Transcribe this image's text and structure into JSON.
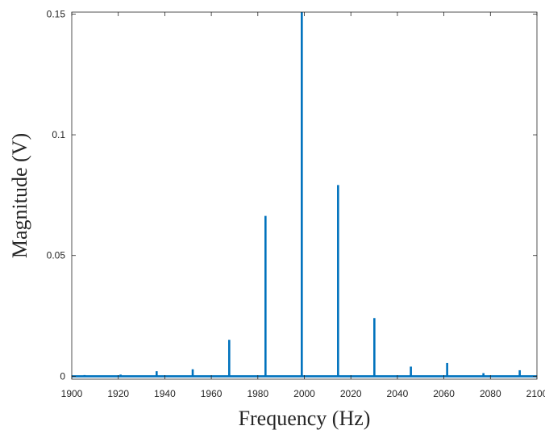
{
  "chart_data": {
    "type": "line",
    "title": "",
    "xlabel": "Frequency (Hz)",
    "ylabel": "Magnitude (V)",
    "xlim": [
      1900,
      2100
    ],
    "ylim": [
      -0.0012,
      0.1508
    ],
    "x_ticks": [
      1900,
      1920,
      1940,
      1960,
      1980,
      2000,
      2020,
      2040,
      2060,
      2080,
      2100
    ],
    "x_tick_labels": [
      "1900",
      "1920",
      "1940",
      "1960",
      "1980",
      "2000",
      "2020",
      "2040",
      "2060",
      "2080",
      "2100"
    ],
    "y_ticks": [
      0,
      0.05,
      0.1,
      0.15
    ],
    "y_tick_labels": [
      "0",
      "0.05",
      "0.1",
      "0.15"
    ],
    "grid": false,
    "legend": "none",
    "series": [
      {
        "color": "#0072BD",
        "baseline": 0,
        "peaks": [
          {
            "x": 1905.5,
            "y": 0.0005
          },
          {
            "x": 1921,
            "y": 0.0007
          },
          {
            "x": 1936.5,
            "y": 0.0021
          },
          {
            "x": 1952,
            "y": 0.0029
          },
          {
            "x": 1967.7,
            "y": 0.0151
          },
          {
            "x": 1983.3,
            "y": 0.0664
          },
          {
            "x": 1998.9,
            "y": 0.1508
          },
          {
            "x": 2014.5,
            "y": 0.0792
          },
          {
            "x": 2030.1,
            "y": 0.0241
          },
          {
            "x": 2045.8,
            "y": 0.004
          },
          {
            "x": 2061.4,
            "y": 0.0055
          },
          {
            "x": 2077,
            "y": 0.0013
          },
          {
            "x": 2092.6,
            "y": 0.0025
          }
        ]
      }
    ]
  }
}
